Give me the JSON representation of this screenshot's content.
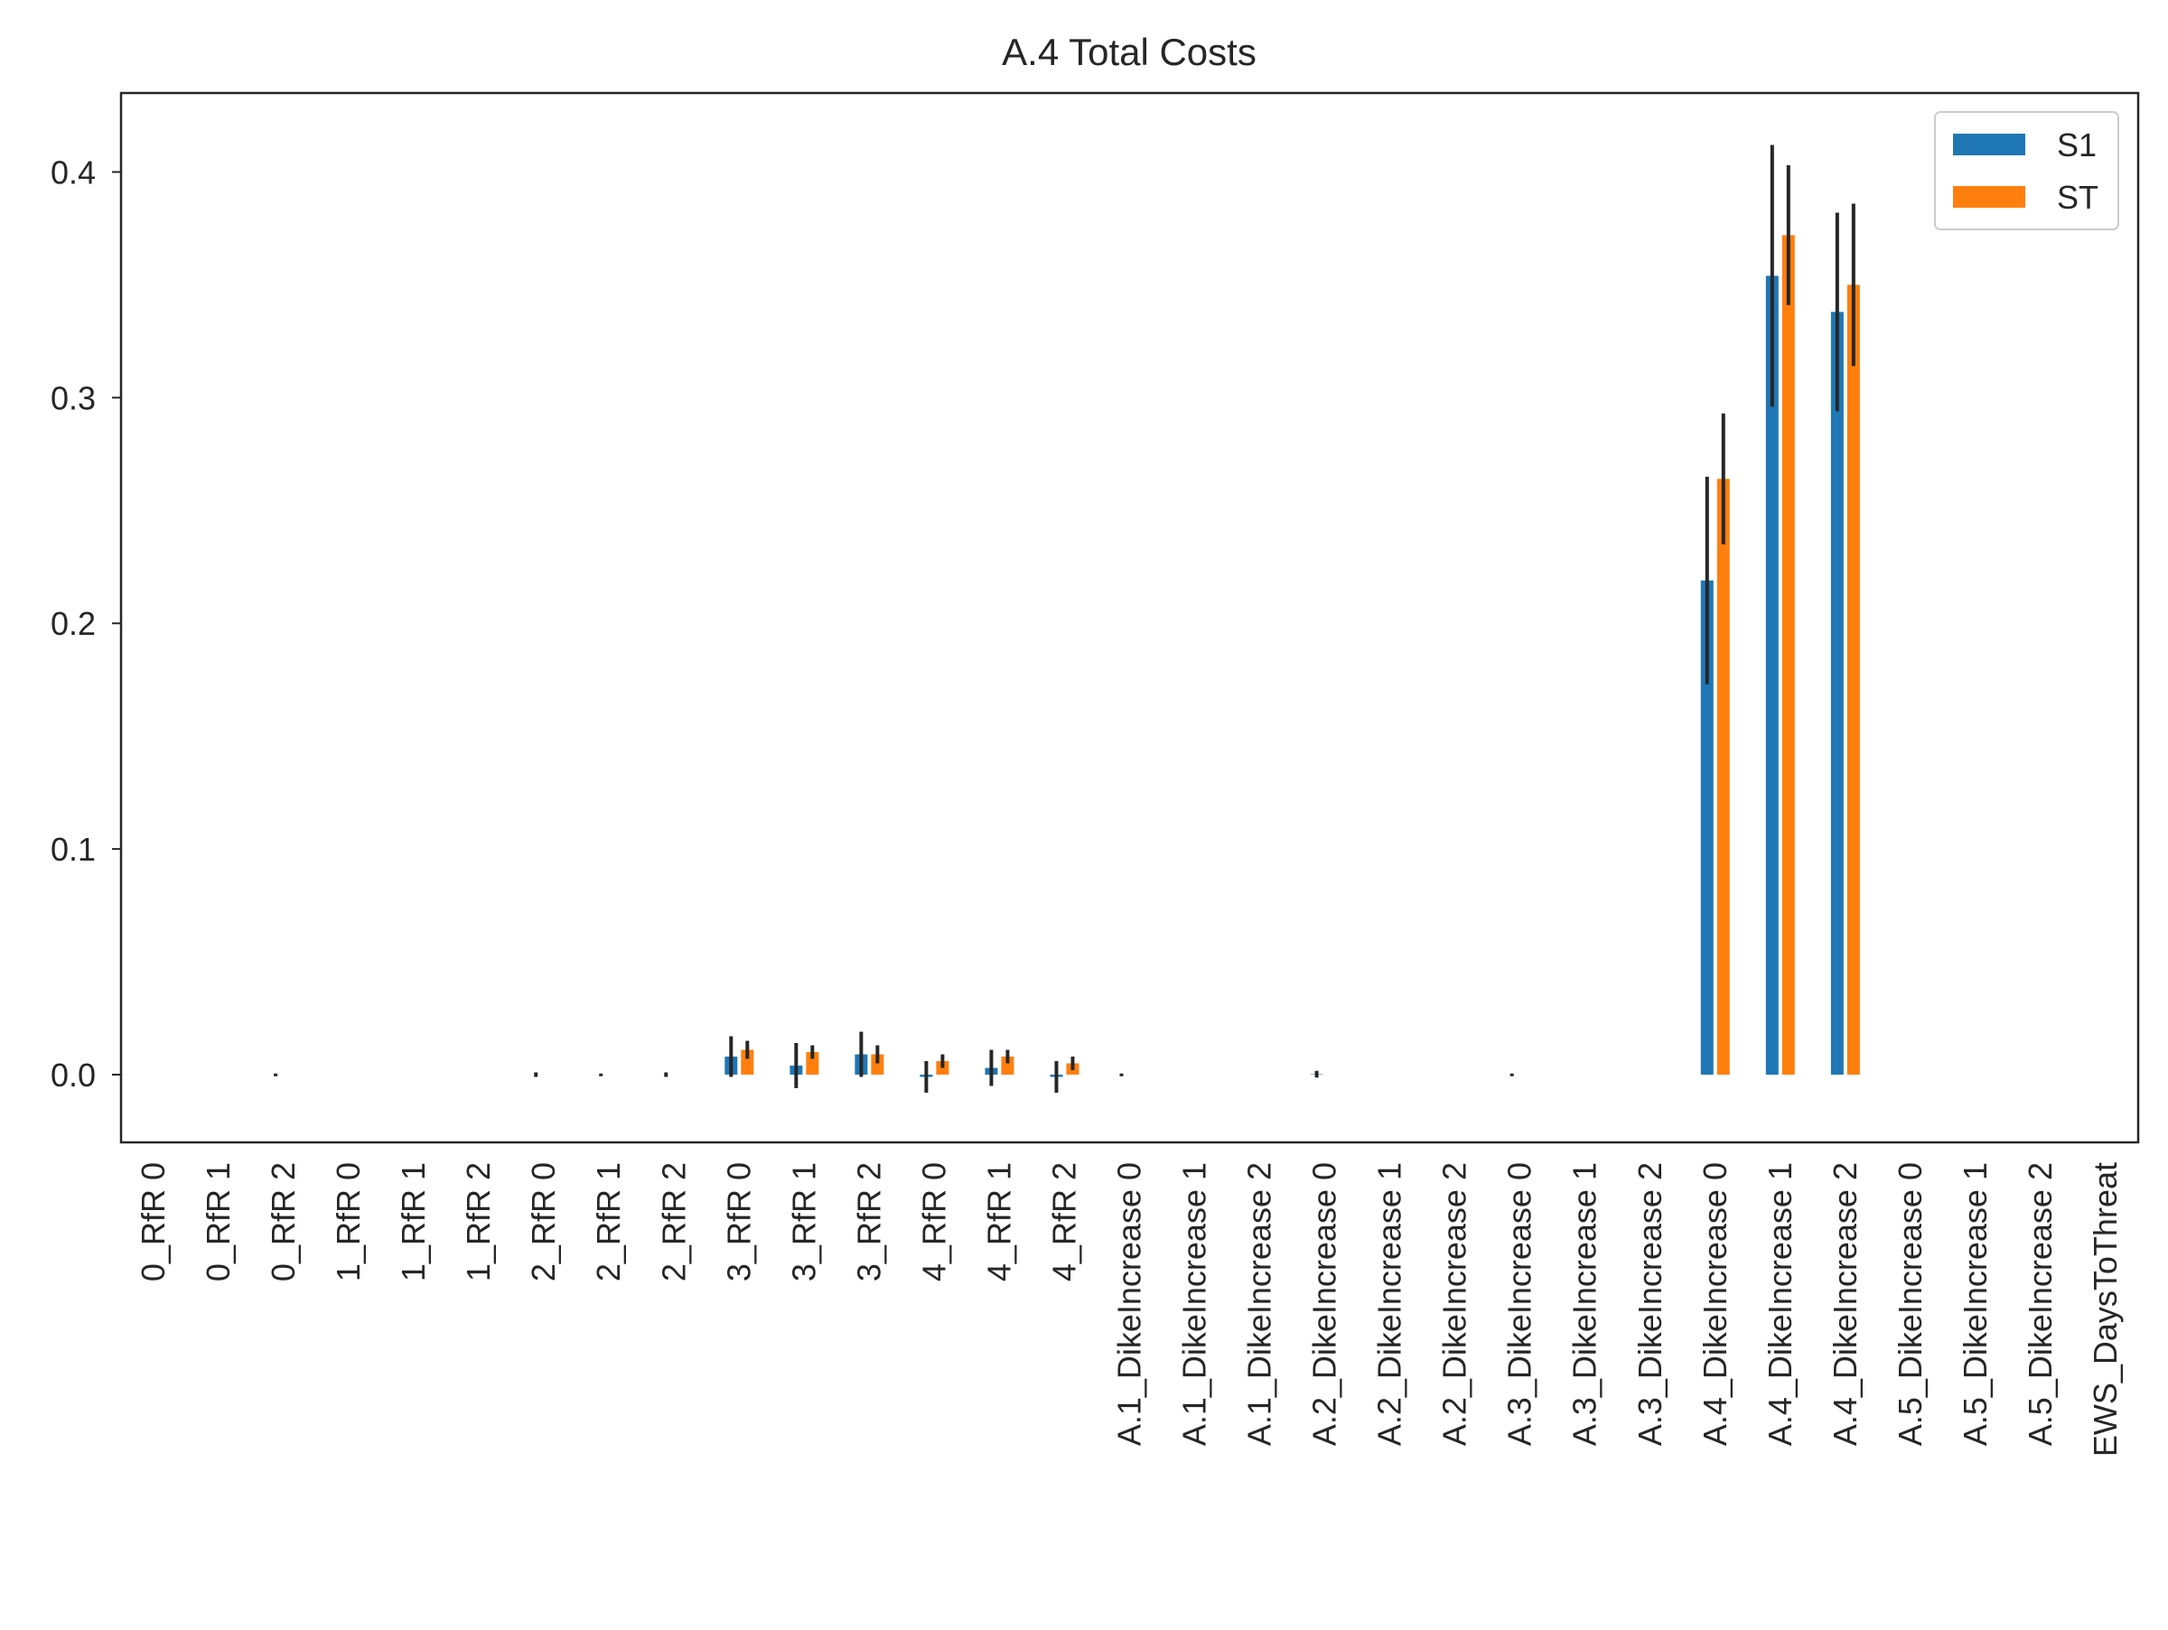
{
  "chart_data": {
    "type": "bar",
    "title": "A.4 Total Costs",
    "xlabel": "",
    "ylabel": "",
    "ylim": [
      -0.03,
      0.435
    ],
    "yticks": [
      0.0,
      0.1,
      0.2,
      0.3,
      0.4
    ],
    "ytick_labels": [
      "0.0",
      "0.1",
      "0.2",
      "0.3",
      "0.4"
    ],
    "grid": false,
    "legend": {
      "placement": "top-right"
    },
    "categories": [
      "0_RfR 0",
      "0_RfR 1",
      "0_RfR 2",
      "1_RfR 0",
      "1_RfR 1",
      "1_RfR 2",
      "2_RfR 0",
      "2_RfR 1",
      "2_RfR 2",
      "3_RfR 0",
      "3_RfR 1",
      "3_RfR 2",
      "4_RfR 0",
      "4_RfR 1",
      "4_RfR 2",
      "A.1_DikeIncrease 0",
      "A.1_DikeIncrease 1",
      "A.1_DikeIncrease 2",
      "A.2_DikeIncrease 0",
      "A.2_DikeIncrease 1",
      "A.2_DikeIncrease 2",
      "A.3_DikeIncrease 0",
      "A.3_DikeIncrease 1",
      "A.3_DikeIncrease 2",
      "A.4_DikeIncrease 0",
      "A.4_DikeIncrease 1",
      "A.4_DikeIncrease 2",
      "A.5_DikeIncrease 0",
      "A.5_DikeIncrease 1",
      "A.5_DikeIncrease 2",
      "EWS_DaysToThreat"
    ],
    "series": [
      {
        "name": "S1",
        "color": "#1f77b4",
        "values": [
          0,
          0,
          0,
          0,
          0,
          0,
          0,
          0,
          0,
          0.008,
          0.004,
          0.009,
          -0.001,
          0.003,
          -0.001,
          0,
          0,
          0,
          0.0002,
          0,
          0,
          0,
          0,
          0,
          0.219,
          0.354,
          0.338,
          0,
          0,
          0,
          0
        ],
        "errors": [
          0,
          0,
          0.0005,
          0,
          0,
          0,
          0.001,
          0.0005,
          0.001,
          0.009,
          0.01,
          0.01,
          0.007,
          0.008,
          0.007,
          0.0005,
          0,
          0,
          0.0015,
          0,
          0,
          0.0005,
          0,
          0,
          0.046,
          0.058,
          0.044,
          0,
          0,
          0,
          0
        ]
      },
      {
        "name": "ST",
        "color": "#ff7f0e",
        "values": [
          0,
          0,
          0,
          0,
          0,
          0,
          0,
          0,
          0,
          0.011,
          0.01,
          0.009,
          0.006,
          0.008,
          0.005,
          0,
          0,
          0,
          0,
          0,
          0,
          0,
          0,
          0,
          0.264,
          0.372,
          0.35,
          0,
          0,
          0,
          0
        ],
        "errors": [
          0,
          0,
          0,
          0,
          0,
          0,
          0,
          0,
          0,
          0.004,
          0.003,
          0.004,
          0.003,
          0.003,
          0.003,
          0,
          0,
          0,
          0,
          0,
          0,
          0,
          0,
          0,
          0.029,
          0.031,
          0.036,
          0,
          0,
          0,
          0
        ]
      }
    ]
  }
}
